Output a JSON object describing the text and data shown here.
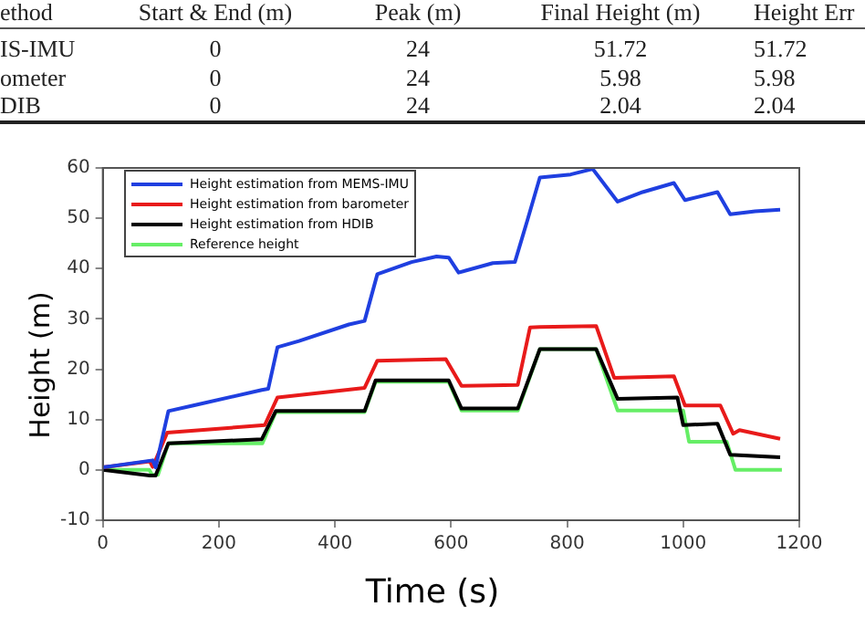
{
  "chart_data": {
    "type": "line",
    "annotations": [
      "ethod",
      "Start & End (m)",
      "Peak (m)",
      "Final Height (m)",
      "Height Err",
      "IS-IMU",
      "0",
      "24",
      "51.72",
      "51.72",
      "ometer",
      "0",
      "24",
      "5.98",
      "5.98",
      "DIB",
      "0",
      "24",
      "2.04",
      "2.04"
    ],
    "xlabel": "Time (s)",
    "ylabel": "Height (m)",
    "xlim": [
      0,
      1200
    ],
    "xticks": [
      0,
      200,
      400,
      600,
      800,
      1000,
      1200
    ],
    "ylim": [
      -10,
      60
    ],
    "yticks": [
      -10,
      0,
      10,
      20,
      30,
      40,
      50,
      60
    ],
    "grid": false,
    "legend": "top left",
    "marker": "none",
    "line_style": "solid",
    "series": [
      {
        "name": "Height estimation from MEMS-IMU",
        "color": "#1f3fe0",
        "x": [
          0,
          86,
          91,
          113,
          156,
          274,
          285,
          301,
          338,
          424,
          451,
          473,
          532,
          575,
          596,
          613,
          672,
          710,
          731,
          753,
          806,
          844,
          887,
          930,
          984,
          1003,
          1059,
          1081,
          1124,
          1167
        ],
        "values": [
          0.5,
          1.9,
          0.5,
          11.7,
          12.8,
          15.9,
          16.1,
          24.4,
          25.6,
          28.9,
          29.6,
          38.9,
          41.3,
          42.4,
          42.2,
          39.2,
          41.1,
          41.3,
          49.4,
          58.1,
          58.7,
          59.8,
          53.3,
          55.2,
          57,
          53.6,
          55.2,
          50.8,
          51.4,
          51.7
        ]
      },
      {
        "name": "Height estimation from barometer",
        "color": "#e81a1a",
        "x": [
          0,
          81,
          86,
          111,
          279,
          301,
          451,
          473,
          591,
          618,
          715,
          736,
          753,
          850,
          881,
          984,
          1003,
          1064,
          1086,
          1097,
          1167
        ],
        "values": [
          0.5,
          1.7,
          0.6,
          7.4,
          8.9,
          14.4,
          16.3,
          21.7,
          22,
          16.7,
          16.9,
          28.3,
          28.4,
          28.6,
          18.3,
          18.6,
          12.8,
          12.8,
          7.2,
          7.9,
          6.2
        ]
      },
      {
        "name": "Height estimation from HDIB",
        "color": "#000000",
        "x": [
          0,
          81,
          91,
          113,
          274,
          298,
          451,
          470,
          596,
          618,
          715,
          753,
          850,
          887,
          990,
          1000,
          1059,
          1081,
          1167
        ],
        "values": [
          0,
          -1.1,
          -1.1,
          5.3,
          6.1,
          11.7,
          11.7,
          17.8,
          17.8,
          12.2,
          12.2,
          24,
          24,
          14.1,
          14.4,
          8.9,
          9.2,
          3,
          2.5
        ]
      },
      {
        "name": "Reference height",
        "color": "#66ee66",
        "x": [
          0,
          80,
          85,
          95,
          113,
          275,
          298,
          451,
          470,
          596,
          618,
          715,
          753,
          850,
          887,
          1000,
          1010,
          1075,
          1090,
          1170
        ],
        "values": [
          0,
          0,
          -1,
          -1,
          5.3,
          5.3,
          11.5,
          11.5,
          17.5,
          17.5,
          11.8,
          11.8,
          24,
          24,
          11.8,
          11.8,
          5.6,
          5.6,
          0,
          0
        ]
      }
    ]
  }
}
